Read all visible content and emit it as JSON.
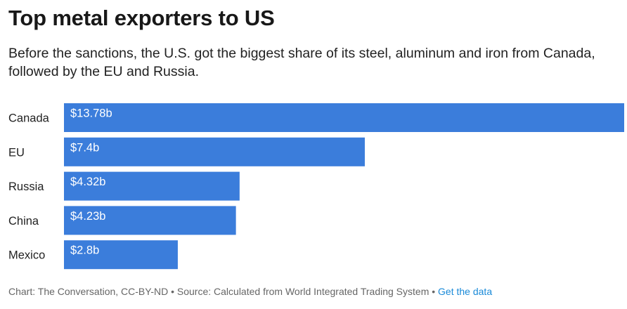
{
  "header": {
    "title": "Top metal exporters to US",
    "subtitle": "Before the sanctions, the U.S. got the biggest share of its steel, aluminum and iron from Canada, followed by the EU and Russia."
  },
  "footer": {
    "chart_credit": "Chart: The Conversation, CC-BY-ND",
    "separator": "•",
    "source": "Source: Calculated from World Integrated Trading System",
    "link_label": "Get the data"
  },
  "colors": {
    "bar": "#3b7ddb",
    "label_text": "#ffffff",
    "link": "#1a8ad8"
  },
  "chart_data": {
    "type": "bar",
    "orientation": "horizontal",
    "title": "Top metal exporters to US",
    "xlabel": "",
    "ylabel": "",
    "unit": "billion USD",
    "categories": [
      "Canada",
      "EU",
      "Russia",
      "China",
      "Mexico"
    ],
    "values": [
      13.78,
      7.4,
      4.32,
      4.23,
      2.8
    ],
    "value_labels": [
      "$13.78b",
      "$7.4b",
      "$4.32b",
      "$4.23b",
      "$2.8b"
    ],
    "xlim": [
      0,
      13.78
    ],
    "grid": false,
    "legend": "none"
  }
}
